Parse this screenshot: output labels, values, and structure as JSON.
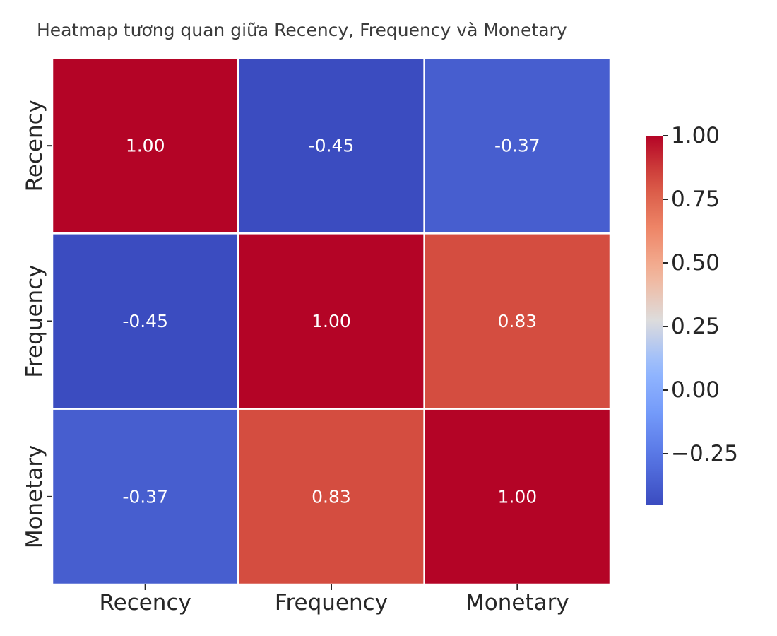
{
  "chart_data": {
    "type": "heatmap",
    "title": "Heatmap tương quan giữa Recency, Frequency và Monetary",
    "x_categories": [
      "Recency",
      "Frequency",
      "Monetary"
    ],
    "y_categories": [
      "Recency",
      "Frequency",
      "Monetary"
    ],
    "values": [
      [
        1.0,
        -0.45,
        -0.37
      ],
      [
        -0.45,
        1.0,
        0.83
      ],
      [
        -0.37,
        0.83,
        1.0
      ]
    ],
    "cell_labels": [
      [
        "1.00",
        "-0.45",
        "-0.37"
      ],
      [
        "-0.45",
        "1.00",
        "0.83"
      ],
      [
        "-0.37",
        "0.83",
        "1.00"
      ]
    ],
    "colormap": "coolwarm",
    "color_range": [
      -0.45,
      1.0
    ],
    "colorbar": {
      "ticks": [
        1.0,
        0.75,
        0.5,
        0.25,
        0.0,
        -0.25
      ],
      "tick_labels": [
        "1.00",
        "0.75",
        "0.50",
        "0.25",
        "0.00",
        "−0.25"
      ],
      "placement": "right"
    }
  }
}
